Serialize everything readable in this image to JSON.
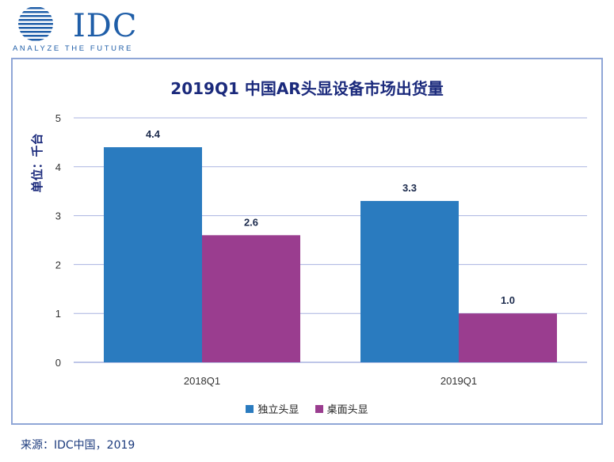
{
  "logo": {
    "name": "IDC",
    "tagline": "ANALYZE THE FUTURE"
  },
  "source": "来源：IDC中国，2019",
  "chart_data": {
    "type": "bar",
    "title": "2019Q1 中国AR头显设备市场出货量",
    "ylabel": "单位：千台",
    "xlabel": "",
    "categories": [
      "2018Q1",
      "2019Q1"
    ],
    "series": [
      {
        "name": "独立头显",
        "values": [
          4.4,
          3.3
        ],
        "color": "#2a7bbf",
        "labels": [
          "4.4",
          "3.3"
        ]
      },
      {
        "name": "桌面头显",
        "values": [
          2.6,
          1.0
        ],
        "color": "#9a3d8f",
        "labels": [
          "2.6",
          "1.0"
        ]
      }
    ],
    "ylim": [
      0,
      5
    ],
    "yticks": [
      "0",
      "1",
      "2",
      "3",
      "4",
      "5"
    ],
    "grid": true,
    "legend": "bottom"
  }
}
